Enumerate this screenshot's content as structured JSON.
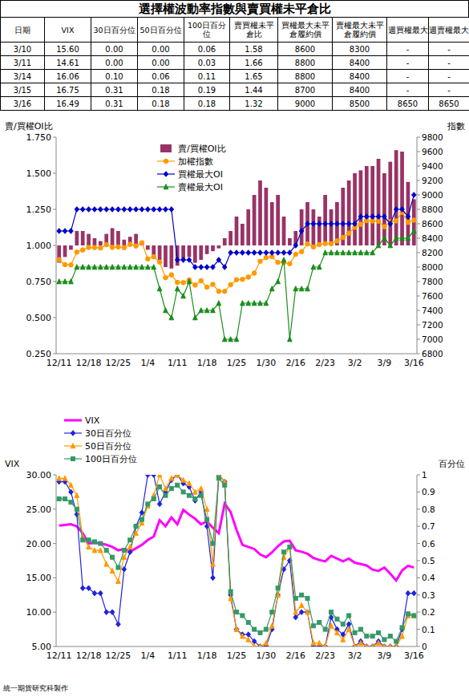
{
  "title": "選擇權波動率指數與賣買權未平倉比",
  "table": {
    "header": [
      "日期",
      "VIX",
      "30日百分位",
      "50日百分位",
      "100日百分位",
      "賣買權未平倉比",
      "買權最大未平倉履約價",
      "賣權最大未平倉履約價",
      "週買權最大",
      "週賣權最大"
    ],
    "rows": [
      [
        "3/10",
        "15.60",
        "0.00",
        "0.00",
        "0.06",
        "1.58",
        "8600",
        "8300",
        "-",
        "-"
      ],
      [
        "3/11",
        "14.61",
        "0.00",
        "0.00",
        "0.03",
        "1.66",
        "8800",
        "8400",
        "-",
        "-"
      ],
      [
        "3/14",
        "16.06",
        "0.10",
        "0.06",
        "0.11",
        "1.65",
        "8800",
        "8400",
        "-",
        "-"
      ],
      [
        "3/15",
        "16.75",
        "0.31",
        "0.18",
        "0.19",
        "1.44",
        "8700",
        "8400",
        "-",
        "-"
      ],
      [
        "3/16",
        "16.49",
        "0.31",
        "0.18",
        "0.18",
        "1.32",
        "9000",
        "8500",
        "8650",
        "8650"
      ]
    ]
  },
  "footer": "統一期貨研究科製作",
  "chart_data": [
    {
      "type": "bar",
      "y_label": "賣/買權OI比",
      "y2_label": "指數",
      "categories": [
        "12/11",
        null,
        null,
        null,
        null,
        "12/18",
        null,
        null,
        null,
        null,
        "12/25",
        null,
        null,
        null,
        null,
        "1/4",
        null,
        null,
        null,
        null,
        "1/11",
        null,
        null,
        null,
        null,
        "1/18",
        null,
        null,
        null,
        null,
        "1/25",
        null,
        null,
        null,
        null,
        "1/30",
        null,
        null,
        null,
        null,
        "2/16",
        null,
        null,
        null,
        null,
        "2/23",
        null,
        null,
        null,
        null,
        "3/2",
        null,
        null,
        null,
        null,
        "3/9",
        null,
        null,
        null,
        null,
        "3/16"
      ],
      "ylim": [
        0.25,
        1.75
      ],
      "yticks": [
        {
          "value": 0.25,
          "label": "0.250"
        },
        {
          "value": 0.5,
          "label": "0.500"
        },
        {
          "value": 0.75,
          "label": "0.750"
        },
        {
          "value": 1,
          "label": "1.000"
        },
        {
          "value": 1.25,
          "label": "1.250"
        },
        {
          "value": 1.5,
          "label": "1.500"
        },
        {
          "value": 1.75,
          "label": "1.750"
        }
      ],
      "y2lim": [
        6800,
        9800
      ],
      "y2ticks": [
        6800,
        7000,
        7200,
        7400,
        7600,
        7800,
        8000,
        8200,
        8400,
        8600,
        8800,
        9000,
        9200,
        9400,
        9600,
        9800
      ],
      "grid": false,
      "legend": "top",
      "series": [
        {
          "name": "賣/買權OI比",
          "type": "bar",
          "color": "#993366",
          "values": [
            0.88,
            0.92,
            0.97,
            1.1,
            1.1,
            1.08,
            1.05,
            1.03,
            1.08,
            1.12,
            1.1,
            1.04,
            1.06,
            1.08,
            1.02,
            0.97,
            0.93,
            0.9,
            0.85,
            0.84,
            0.86,
            0.9,
            0.92,
            0.88,
            0.9,
            0.94,
            0.96,
            0.98,
            1.05,
            1.1,
            1.2,
            1.15,
            1.25,
            1.35,
            1.45,
            1.4,
            1.3,
            1.35,
            1.2,
            1.05,
            1.1,
            1.25,
            1.3,
            1.25,
            1.2,
            1.35,
            1.25,
            1.3,
            1.4,
            1.45,
            1.5,
            1.52,
            1.55,
            1.55,
            1.6,
            1.5,
            1.58,
            1.66,
            1.65,
            1.44,
            1.32
          ]
        },
        {
          "name": "加權指數",
          "type": "line",
          "axis": "y2",
          "color": "#ff9900",
          "marker": "circle",
          "line_style": "solid",
          "values": [
            8103,
            8034,
            8030,
            8207,
            8237,
            8272,
            8271,
            8265,
            8310,
            8273,
            8279,
            8270,
            8315,
            8293,
            8338,
            8114,
            8143,
            8070,
            7853,
            7893,
            7788,
            7785,
            7822,
            7751,
            7811,
            7723,
            7761,
            7664,
            7664,
            7756,
            7825,
            7830,
            7862,
            7917,
            8080,
            8131,
            8144,
            8066,
            8063,
            8047,
            8177,
            8214,
            8321,
            8279,
            8311,
            8325,
            8324,
            8362,
            8411,
            8470,
            8550,
            8593,
            8644,
            8639,
            8635,
            8560,
            8630,
            8640,
            8760,
            8620,
            8650
          ]
        },
        {
          "name": "買權最大OI",
          "type": "line",
          "axis": "y2",
          "color": "#0000cc",
          "marker": "diamond",
          "line_style": "solid",
          "values": [
            8500,
            8500,
            8500,
            8800,
            8800,
            8800,
            8800,
            8800,
            8800,
            8800,
            8800,
            8800,
            8800,
            8800,
            8800,
            8800,
            8800,
            8800,
            8800,
            8800,
            8100,
            8100,
            8100,
            8000,
            8000,
            8000,
            8000,
            8100,
            8000,
            8200,
            8200,
            8200,
            8200,
            8200,
            8200,
            8200,
            8200,
            8200,
            8200,
            8200,
            8300,
            8500,
            8600,
            8600,
            8600,
            8600,
            8600,
            8600,
            8600,
            8600,
            8600,
            8700,
            8700,
            8700,
            8700,
            8700,
            8600,
            8800,
            8800,
            8700,
            9000
          ]
        },
        {
          "name": "賣權最大OI",
          "type": "line",
          "axis": "y2",
          "color": "#1a8c1a",
          "marker": "triangle",
          "line_style": "solid",
          "values": [
            7800,
            7800,
            7800,
            8000,
            8000,
            8000,
            8000,
            8000,
            8000,
            8000,
            8000,
            8000,
            8000,
            8000,
            8000,
            8000,
            8000,
            7700,
            7400,
            7300,
            7700,
            7600,
            7800,
            7300,
            7400,
            7400,
            7400,
            7500,
            7000,
            7000,
            7000,
            7500,
            7500,
            7500,
            7500,
            7500,
            7700,
            7800,
            8100,
            7000,
            7700,
            7700,
            7700,
            8000,
            8000,
            8200,
            8200,
            8200,
            8200,
            8200,
            8200,
            8200,
            8200,
            8200,
            8300,
            8400,
            8300,
            8400,
            8400,
            8400,
            8500
          ]
        }
      ]
    },
    {
      "type": "line",
      "y_label": "VIX",
      "y2_label": "百分位",
      "categories": [
        "12/11",
        null,
        null,
        null,
        null,
        "12/18",
        null,
        null,
        null,
        null,
        "12/25",
        null,
        null,
        null,
        null,
        "1/4",
        null,
        null,
        null,
        null,
        "1/11",
        null,
        null,
        null,
        null,
        "1/18",
        null,
        null,
        null,
        null,
        "1/25",
        null,
        null,
        null,
        null,
        "1/30",
        null,
        null,
        null,
        null,
        "2/16",
        null,
        null,
        null,
        null,
        "2/23",
        null,
        null,
        null,
        null,
        "3/2",
        null,
        null,
        null,
        null,
        "3/9",
        null,
        null,
        null,
        null,
        "3/16"
      ],
      "ylim": [
        5,
        30
      ],
      "yticks": [
        {
          "value": 5,
          "label": "5.00"
        },
        {
          "value": 10,
          "label": "10.00"
        },
        {
          "value": 15,
          "label": "15.00"
        },
        {
          "value": 20,
          "label": "20.00"
        },
        {
          "value": 25,
          "label": "25.00"
        },
        {
          "value": 30,
          "label": "30.00"
        }
      ],
      "y2lim": [
        0,
        1
      ],
      "y2ticks": [
        0,
        0.1,
        0.2,
        0.3,
        0.4,
        0.5,
        0.6,
        0.7,
        0.8,
        0.9,
        1
      ],
      "grid": false,
      "legend": "top-left",
      "series": [
        {
          "name": "VIX",
          "color": "#ff00ff",
          "marker": "none",
          "line_style": "solid",
          "values": [
            22.6,
            22.7,
            22.8,
            22.5,
            21.5,
            20.0,
            20.1,
            20.0,
            19.8,
            19.5,
            19.0,
            19.2,
            18.8,
            19.3,
            19.8,
            20.5,
            21.0,
            23.4,
            22.5,
            23.8,
            22.8,
            24.9,
            24.2,
            23.6,
            22.8,
            23.2,
            22.3,
            21.5,
            25.8,
            24.6,
            22.0,
            19.8,
            19.5,
            19.2,
            18.4,
            18.0,
            18.7,
            19.6,
            20.3,
            20.4,
            19.0,
            18.8,
            18.5,
            17.9,
            17.6,
            17.4,
            18.2,
            17.8,
            17.4,
            17.8,
            17.2,
            17.0,
            16.8,
            16.2,
            16.0,
            16.5,
            15.6,
            14.61,
            16.06,
            16.75,
            16.49
          ]
        },
        {
          "name": "30日百分位",
          "axis": "y2",
          "color": "#2222dd",
          "marker": "diamond",
          "line_style": "solid",
          "values": [
            0.96,
            0.96,
            0.9,
            0.77,
            0.34,
            0.34,
            0.31,
            0.31,
            0.2,
            0.2,
            0.13,
            0.45,
            0.55,
            0.7,
            0.78,
            1.0,
            1.0,
            0.83,
            0.9,
            0.97,
            1.0,
            0.95,
            0.93,
            0.85,
            0.9,
            0.7,
            0.4,
            1.0,
            0.96,
            0.3,
            0.1,
            0.07,
            0.07,
            0.03,
            0.0,
            0.0,
            0.1,
            0.3,
            0.45,
            0.5,
            0.17,
            0.2,
            0.2,
            0.0,
            0.0,
            0.0,
            0.17,
            0.1,
            0.07,
            0.13,
            0.0,
            0.03,
            0.0,
            0.0,
            0.03,
            0.0,
            0.0,
            0.0,
            0.1,
            0.31,
            0.31
          ]
        },
        {
          "name": "50日百分位",
          "axis": "y2",
          "color": "#ff9900",
          "marker": "triangle",
          "line_style": "solid",
          "values": [
            0.98,
            0.98,
            0.94,
            0.88,
            0.64,
            0.58,
            0.56,
            0.56,
            0.48,
            0.44,
            0.38,
            0.52,
            0.58,
            0.66,
            0.72,
            0.82,
            0.88,
            1.0,
            0.92,
            0.98,
            1.0,
            0.97,
            0.95,
            0.9,
            0.92,
            0.8,
            0.48,
            1.0,
            0.96,
            0.28,
            0.1,
            0.06,
            0.04,
            0.0,
            0.0,
            0.02,
            0.12,
            0.3,
            0.52,
            0.58,
            0.2,
            0.24,
            0.2,
            0.02,
            0.02,
            0.0,
            0.12,
            0.08,
            0.04,
            0.1,
            0.0,
            0.02,
            0.0,
            0.0,
            0.02,
            0.0,
            0.0,
            0.0,
            0.06,
            0.18,
            0.18
          ]
        },
        {
          "name": "100日百分位",
          "axis": "y2",
          "color": "#339966",
          "marker": "square",
          "line_style": "solid",
          "values": [
            0.86,
            0.86,
            0.84,
            0.8,
            0.62,
            0.62,
            0.61,
            0.6,
            0.56,
            0.52,
            0.46,
            0.56,
            0.62,
            0.7,
            0.74,
            0.83,
            0.86,
            0.93,
            0.88,
            0.92,
            0.94,
            0.9,
            0.88,
            0.86,
            0.88,
            0.74,
            0.6,
            0.98,
            0.94,
            0.32,
            0.2,
            0.18,
            0.14,
            0.1,
            0.08,
            0.1,
            0.2,
            0.34,
            0.55,
            0.58,
            0.28,
            0.3,
            0.28,
            0.12,
            0.14,
            0.1,
            0.2,
            0.16,
            0.13,
            0.18,
            0.08,
            0.1,
            0.06,
            0.06,
            0.08,
            0.04,
            0.06,
            0.03,
            0.11,
            0.19,
            0.18
          ]
        }
      ]
    }
  ]
}
